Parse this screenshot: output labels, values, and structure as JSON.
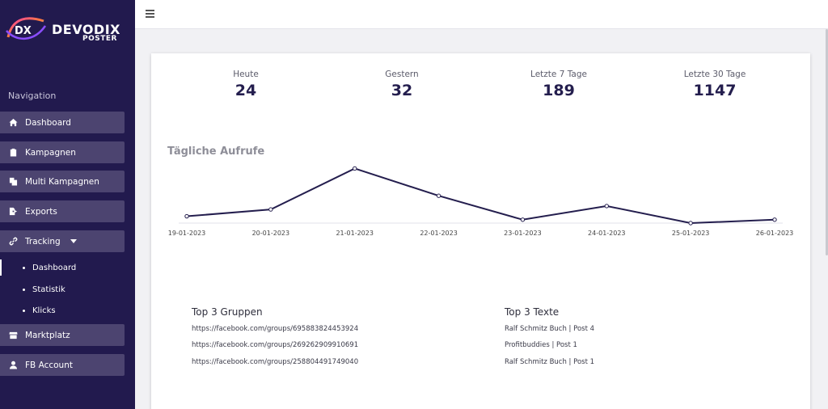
{
  "brand": {
    "mark": "DX",
    "name": "DEVODIX",
    "sub": "POSTER"
  },
  "sidebar": {
    "nav_label": "Navigation",
    "items": [
      {
        "label": "Dashboard",
        "icon": "home-icon"
      },
      {
        "label": "Kampagnen",
        "icon": "clipboard-icon"
      },
      {
        "label": "Multi Kampagnen",
        "icon": "copy-icon"
      },
      {
        "label": "Exports",
        "icon": "file-export-icon"
      },
      {
        "label": "Tracking",
        "icon": "link-icon"
      },
      {
        "label": "Marktplatz",
        "icon": "store-icon"
      },
      {
        "label": "FB Account",
        "icon": "user-icon"
      }
    ],
    "tracking_sub": [
      {
        "label": "Dashboard",
        "active": true
      },
      {
        "label": "Statistik",
        "active": false
      },
      {
        "label": "Klicks",
        "active": false
      }
    ]
  },
  "stats": [
    {
      "label": "Heute",
      "value": "24"
    },
    {
      "label": "Gestern",
      "value": "32"
    },
    {
      "label": "Letzte 7 Tage",
      "value": "189"
    },
    {
      "label": "Letzte 30 Tage",
      "value": "1147"
    }
  ],
  "chart_data": {
    "type": "line",
    "title": "Tägliche Aufrufe",
    "categories": [
      "19-01-2023",
      "20-01-2023",
      "21-01-2023",
      "22-01-2023",
      "23-01-2023",
      "24-01-2023",
      "25-01-2023",
      "26-01-2023"
    ],
    "values": [
      2,
      4,
      16,
      8,
      1,
      5,
      0,
      1
    ],
    "ylim": [
      0,
      18
    ],
    "color": "#241e4e",
    "grid": false,
    "legend": "none"
  },
  "top_groups": {
    "title": "Top 3 Gruppen",
    "items": [
      "https://facebook.com/groups/695883824453924",
      "https://facebook.com/groups/269262909910691",
      "https://facebook.com/groups/258804491749040"
    ]
  },
  "top_texts": {
    "title": "Top 3 Texte",
    "items": [
      "Ralf Schmitz Buch | Post 4",
      "Profitbuddies | Post 1",
      "Ralf Schmitz Buch | Post 1"
    ]
  },
  "colors": {
    "sidebar_bg": "#221a4e",
    "nav_item_bg": "#4c4470",
    "accent_dark": "#241e4e"
  }
}
